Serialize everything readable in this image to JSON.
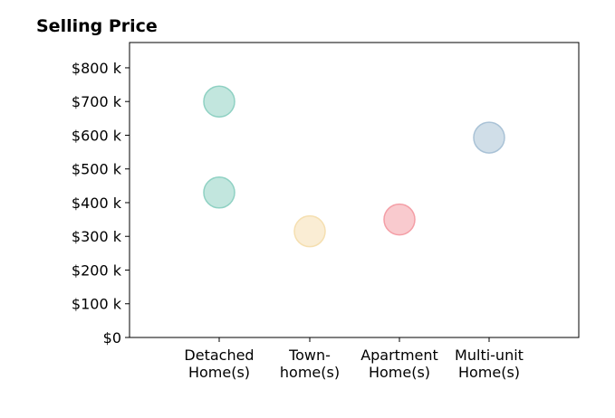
{
  "chart_data": {
    "type": "scatter",
    "title": "Selling Price",
    "xlabel": "",
    "ylabel": "",
    "categories": [
      [
        "Detached",
        "Home(s)"
      ],
      [
        "Town-",
        "home(s)"
      ],
      [
        "Apartment",
        "Home(s)"
      ],
      [
        "Multi-unit",
        "Home(s)"
      ]
    ],
    "ylim": [
      0,
      875
    ],
    "yticks": [
      0,
      100,
      200,
      300,
      400,
      500,
      600,
      700,
      800
    ],
    "ytick_labels": [
      "$0",
      "$100 k",
      "$200 k",
      "$300 k",
      "$400 k",
      "$500 k",
      "$600 k",
      "$700 k",
      "$800 k"
    ],
    "grid": false,
    "legend": "none",
    "points": [
      {
        "category": 0,
        "value": 700,
        "color": "#8fd1c3"
      },
      {
        "category": 0,
        "value": 430,
        "color": "#8fd1c3"
      },
      {
        "category": 1,
        "value": 315,
        "color": "#f5dfb0"
      },
      {
        "category": 2,
        "value": 350,
        "color": "#f49ea6"
      },
      {
        "category": 3,
        "value": 593,
        "color": "#a9c2d6"
      }
    ]
  }
}
